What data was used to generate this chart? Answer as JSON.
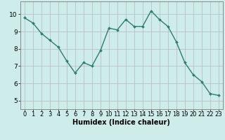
{
  "x": [
    0,
    1,
    2,
    3,
    4,
    5,
    6,
    7,
    8,
    9,
    10,
    11,
    12,
    13,
    14,
    15,
    16,
    17,
    18,
    19,
    20,
    21,
    22,
    23
  ],
  "y": [
    9.8,
    9.5,
    8.9,
    8.5,
    8.1,
    7.3,
    6.6,
    7.2,
    7.0,
    7.9,
    9.2,
    9.1,
    9.7,
    9.3,
    9.3,
    10.2,
    9.7,
    9.3,
    8.4,
    7.2,
    6.5,
    6.1,
    5.4,
    5.3
  ],
  "xlabel": "Humidex (Indice chaleur)",
  "xlim": [
    -0.5,
    23.5
  ],
  "ylim": [
    4.5,
    10.75
  ],
  "yticks": [
    5,
    6,
    7,
    8,
    9,
    10
  ],
  "xticks": [
    0,
    1,
    2,
    3,
    4,
    5,
    6,
    7,
    8,
    9,
    10,
    11,
    12,
    13,
    14,
    15,
    16,
    17,
    18,
    19,
    20,
    21,
    22,
    23
  ],
  "line_color": "#2e7d6e",
  "marker": "D",
  "marker_size": 2.0,
  "line_width": 1.0,
  "bg_color": "#ceecea",
  "grid_color_major": "#b8b8b8",
  "grid_color_minor": "#d4d4d4",
  "axes_bg": "#ceecea",
  "tick_fontsize": 6.0,
  "xlabel_fontsize": 7.0,
  "ytick_fontsize": 6.5
}
